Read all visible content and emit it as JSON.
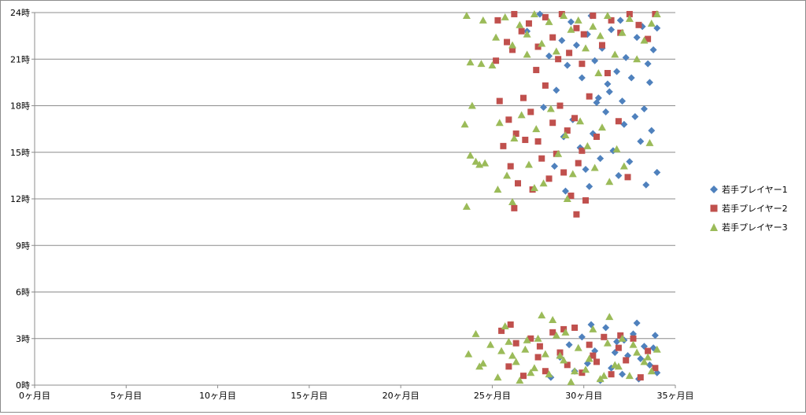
{
  "chart_data": {
    "type": "scatter",
    "title": "",
    "xlabel": "",
    "ylabel": "",
    "xlim": [
      0,
      35
    ],
    "ylim": [
      0,
      24
    ],
    "x_ticks": [
      0,
      5,
      10,
      15,
      20,
      25,
      30,
      35
    ],
    "x_tick_labels": [
      "0ヶ月目",
      "5ヶ月目",
      "10ヶ月目",
      "15ヶ月目",
      "20ヶ月目",
      "25ヶ月目",
      "30ヶ月目",
      "35ヶ月目"
    ],
    "y_ticks": [
      0,
      3,
      6,
      9,
      12,
      15,
      18,
      21,
      24
    ],
    "y_tick_labels": [
      "0時",
      "3時",
      "6時",
      "9時",
      "12時",
      "15時",
      "18時",
      "21時",
      "24時"
    ],
    "grid": "horizontal",
    "legend_position": "right",
    "series": [
      {
        "name": "若手プレイヤー1",
        "marker": "diamond",
        "color": "#4f81bd",
        "points": [
          [
            26.9,
            22.8
          ],
          [
            27.6,
            23.9
          ],
          [
            28.1,
            21.2
          ],
          [
            28.5,
            19.0
          ],
          [
            28.8,
            22.2
          ],
          [
            29.1,
            20.6
          ],
          [
            29.3,
            23.4
          ],
          [
            29.6,
            21.9
          ],
          [
            29.9,
            19.8
          ],
          [
            30.2,
            22.6
          ],
          [
            30.4,
            23.8
          ],
          [
            30.6,
            20.9
          ],
          [
            30.8,
            18.5
          ],
          [
            31.0,
            21.7
          ],
          [
            31.3,
            19.4
          ],
          [
            31.5,
            22.9
          ],
          [
            31.8,
            20.2
          ],
          [
            32.0,
            23.5
          ],
          [
            32.3,
            21.1
          ],
          [
            32.6,
            19.8
          ],
          [
            32.9,
            22.4
          ],
          [
            33.2,
            23.1
          ],
          [
            33.5,
            20.7
          ],
          [
            33.8,
            21.6
          ],
          [
            34.0,
            23.0
          ],
          [
            29.4,
            17.1
          ],
          [
            29.8,
            15.3
          ],
          [
            30.1,
            13.9
          ],
          [
            30.5,
            16.2
          ],
          [
            30.9,
            14.6
          ],
          [
            31.2,
            17.6
          ],
          [
            31.6,
            15.1
          ],
          [
            31.9,
            13.5
          ],
          [
            32.2,
            16.8
          ],
          [
            32.5,
            14.4
          ],
          [
            32.8,
            17.3
          ],
          [
            33.1,
            15.7
          ],
          [
            33.4,
            12.9
          ],
          [
            33.7,
            16.4
          ],
          [
            34.0,
            13.7
          ],
          [
            29.0,
            12.5
          ],
          [
            30.3,
            12.8
          ],
          [
            28.4,
            14.1
          ],
          [
            27.8,
            17.9
          ],
          [
            28.9,
            16.0
          ],
          [
            30.7,
            18.2
          ],
          [
            31.4,
            18.9
          ],
          [
            32.1,
            18.3
          ],
          [
            33.3,
            17.8
          ],
          [
            33.6,
            19.5
          ],
          [
            28.2,
            0.5
          ],
          [
            28.7,
            1.8
          ],
          [
            29.2,
            2.6
          ],
          [
            29.5,
            0.9
          ],
          [
            29.9,
            3.1
          ],
          [
            30.2,
            1.4
          ],
          [
            30.6,
            2.2
          ],
          [
            30.9,
            0.3
          ],
          [
            31.2,
            3.7
          ],
          [
            31.5,
            1.1
          ],
          [
            31.8,
            2.8
          ],
          [
            32.1,
            0.7
          ],
          [
            32.4,
            1.9
          ],
          [
            32.7,
            3.3
          ],
          [
            33.0,
            0.4
          ],
          [
            33.3,
            2.5
          ],
          [
            33.6,
            1.3
          ],
          [
            33.9,
            3.2
          ],
          [
            34.0,
            0.8
          ],
          [
            32.9,
            4.0
          ],
          [
            30.4,
            3.9
          ],
          [
            31.7,
            2.1
          ],
          [
            32.2,
            2.9
          ],
          [
            33.1,
            1.7
          ],
          [
            33.8,
            2.4
          ]
        ]
      },
      {
        "name": "若手プレイヤー2",
        "marker": "square",
        "color": "#c0504d",
        "points": [
          [
            25.3,
            23.5
          ],
          [
            25.8,
            22.1
          ],
          [
            26.2,
            23.9
          ],
          [
            26.6,
            22.8
          ],
          [
            27.0,
            23.3
          ],
          [
            27.5,
            21.8
          ],
          [
            27.9,
            23.7
          ],
          [
            28.3,
            22.4
          ],
          [
            28.8,
            23.9
          ],
          [
            29.2,
            21.4
          ],
          [
            29.6,
            23.0
          ],
          [
            30.0,
            22.6
          ],
          [
            30.5,
            23.8
          ],
          [
            31.0,
            21.9
          ],
          [
            31.5,
            23.5
          ],
          [
            32.0,
            22.7
          ],
          [
            32.5,
            23.9
          ],
          [
            33.0,
            23.2
          ],
          [
            33.5,
            22.3
          ],
          [
            33.9,
            23.9
          ],
          [
            25.2,
            20.9
          ],
          [
            26.1,
            21.6
          ],
          [
            27.4,
            20.3
          ],
          [
            28.6,
            21.0
          ],
          [
            29.9,
            20.7
          ],
          [
            31.3,
            20.1
          ],
          [
            25.4,
            18.3
          ],
          [
            25.9,
            17.1
          ],
          [
            26.3,
            16.2
          ],
          [
            26.7,
            18.5
          ],
          [
            27.1,
            17.6
          ],
          [
            27.5,
            15.7
          ],
          [
            27.9,
            19.3
          ],
          [
            28.3,
            16.9
          ],
          [
            28.7,
            18.0
          ],
          [
            29.1,
            16.4
          ],
          [
            29.5,
            17.2
          ],
          [
            29.9,
            15.1
          ],
          [
            30.3,
            18.6
          ],
          [
            30.7,
            16.0
          ],
          [
            25.6,
            15.4
          ],
          [
            26.0,
            14.1
          ],
          [
            26.4,
            13.0
          ],
          [
            26.8,
            15.8
          ],
          [
            27.2,
            12.6
          ],
          [
            27.7,
            14.6
          ],
          [
            28.1,
            13.3
          ],
          [
            28.5,
            14.9
          ],
          [
            28.9,
            13.7
          ],
          [
            29.3,
            12.2
          ],
          [
            29.7,
            14.3
          ],
          [
            30.1,
            11.9
          ],
          [
            26.2,
            11.4
          ],
          [
            29.6,
            11.0
          ],
          [
            31.9,
            17.0
          ],
          [
            32.4,
            13.4
          ],
          [
            25.5,
            3.5
          ],
          [
            25.9,
            1.2
          ],
          [
            26.3,
            2.7
          ],
          [
            26.7,
            0.6
          ],
          [
            27.1,
            3.0
          ],
          [
            27.5,
            1.8
          ],
          [
            27.9,
            0.9
          ],
          [
            28.3,
            3.4
          ],
          [
            28.7,
            2.1
          ],
          [
            29.1,
            1.3
          ],
          [
            29.5,
            3.7
          ],
          [
            29.9,
            0.8
          ],
          [
            30.3,
            2.6
          ],
          [
            30.7,
            1.5
          ],
          [
            31.1,
            3.1
          ],
          [
            31.5,
            0.7
          ],
          [
            31.9,
            2.4
          ],
          [
            32.3,
            1.6
          ],
          [
            32.7,
            3.0
          ],
          [
            33.1,
            0.5
          ],
          [
            33.5,
            2.2
          ],
          [
            33.9,
            1.1
          ],
          [
            26.0,
            3.9
          ],
          [
            27.6,
            2.5
          ],
          [
            28.9,
            3.6
          ],
          [
            30.5,
            1.9
          ],
          [
            32.0,
            3.2
          ]
        ]
      },
      {
        "name": "若手プレイヤー3",
        "marker": "triangle",
        "color": "#9bbb59",
        "points": [
          [
            23.6,
            23.8
          ],
          [
            24.5,
            23.5
          ],
          [
            25.2,
            22.4
          ],
          [
            25.7,
            23.7
          ],
          [
            26.1,
            21.9
          ],
          [
            26.5,
            23.2
          ],
          [
            26.9,
            22.6
          ],
          [
            27.3,
            23.9
          ],
          [
            27.7,
            22.0
          ],
          [
            28.1,
            23.4
          ],
          [
            28.5,
            21.5
          ],
          [
            28.9,
            23.8
          ],
          [
            29.3,
            22.9
          ],
          [
            29.7,
            23.5
          ],
          [
            30.1,
            21.7
          ],
          [
            30.5,
            23.1
          ],
          [
            30.9,
            22.5
          ],
          [
            31.3,
            23.8
          ],
          [
            31.7,
            21.3
          ],
          [
            32.1,
            22.7
          ],
          [
            32.5,
            23.6
          ],
          [
            32.9,
            21.0
          ],
          [
            33.3,
            22.2
          ],
          [
            33.7,
            23.3
          ],
          [
            34.0,
            23.9
          ],
          [
            23.8,
            20.8
          ],
          [
            24.4,
            20.7
          ],
          [
            25.0,
            20.6
          ],
          [
            26.9,
            21.3
          ],
          [
            30.8,
            20.1
          ],
          [
            23.5,
            16.8
          ],
          [
            23.9,
            18.0
          ],
          [
            23.8,
            14.8
          ],
          [
            24.1,
            14.4
          ],
          [
            24.6,
            14.3
          ],
          [
            24.3,
            14.2
          ],
          [
            25.4,
            16.9
          ],
          [
            25.8,
            13.5
          ],
          [
            26.2,
            15.9
          ],
          [
            26.6,
            17.4
          ],
          [
            27.0,
            14.2
          ],
          [
            27.4,
            16.5
          ],
          [
            27.8,
            13.0
          ],
          [
            28.2,
            17.8
          ],
          [
            28.6,
            14.9
          ],
          [
            29.0,
            16.1
          ],
          [
            29.4,
            13.6
          ],
          [
            29.8,
            17.0
          ],
          [
            30.2,
            15.4
          ],
          [
            30.6,
            14.0
          ],
          [
            31.0,
            16.6
          ],
          [
            31.4,
            13.1
          ],
          [
            31.8,
            15.2
          ],
          [
            32.2,
            14.1
          ],
          [
            33.6,
            15.6
          ],
          [
            26.1,
            11.8
          ],
          [
            23.6,
            11.5
          ],
          [
            25.3,
            12.6
          ],
          [
            29.1,
            12.0
          ],
          [
            27.3,
            12.7
          ],
          [
            23.7,
            2.0
          ],
          [
            24.1,
            3.3
          ],
          [
            24.5,
            1.4
          ],
          [
            24.9,
            2.6
          ],
          [
            25.3,
            0.5
          ],
          [
            25.7,
            3.8
          ],
          [
            26.1,
            1.9
          ],
          [
            26.5,
            0.3
          ],
          [
            26.9,
            2.9
          ],
          [
            27.3,
            1.1
          ],
          [
            27.7,
            4.5
          ],
          [
            28.1,
            0.7
          ],
          [
            28.5,
            3.2
          ],
          [
            28.9,
            1.6
          ],
          [
            29.3,
            0.2
          ],
          [
            29.7,
            2.4
          ],
          [
            30.1,
            1.0
          ],
          [
            30.5,
            3.6
          ],
          [
            30.9,
            0.4
          ],
          [
            31.3,
            2.7
          ],
          [
            31.7,
            1.3
          ],
          [
            32.1,
            3.0
          ],
          [
            32.5,
            0.6
          ],
          [
            32.9,
            2.1
          ],
          [
            33.3,
            1.5
          ],
          [
            33.7,
            0.9
          ],
          [
            34.0,
            2.3
          ],
          [
            24.3,
            1.2
          ],
          [
            25.5,
            2.2
          ],
          [
            26.3,
            1.5
          ],
          [
            27.1,
            0.8
          ],
          [
            27.9,
            2.0
          ],
          [
            28.7,
            1.9
          ],
          [
            29.5,
            0.9
          ],
          [
            30.3,
            1.7
          ],
          [
            31.1,
            0.6
          ],
          [
            31.9,
            1.2
          ],
          [
            32.7,
            2.6
          ],
          [
            33.5,
            1.8
          ],
          [
            28.3,
            4.2
          ],
          [
            31.4,
            4.4
          ],
          [
            29.0,
            3.4
          ],
          [
            27.5,
            3.0
          ],
          [
            26.8,
            2.3
          ],
          [
            25.9,
            2.8
          ]
        ]
      }
    ]
  }
}
